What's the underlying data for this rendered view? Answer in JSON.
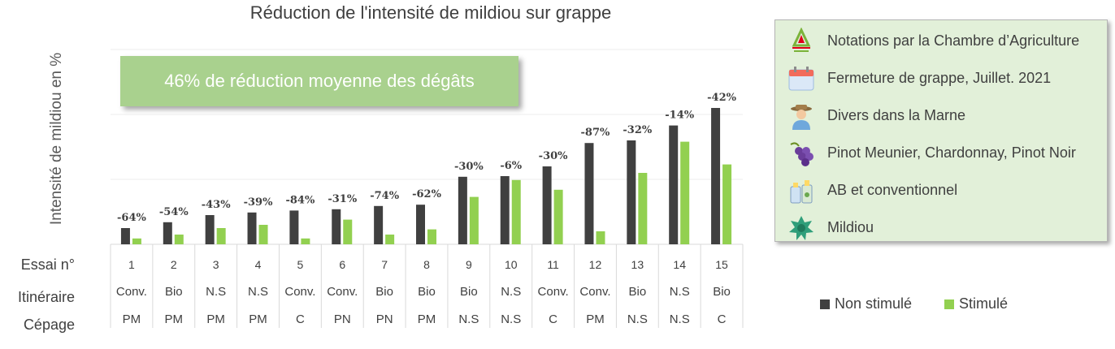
{
  "chart_data": {
    "type": "bar",
    "title": "Réduction de l'intensité de mildiou sur grappe",
    "ylabel": "Intensité de mildiou en %",
    "xlabel": "Essai n°",
    "categories": [
      "1",
      "2",
      "3",
      "4",
      "5",
      "6",
      "7",
      "8",
      "9",
      "10",
      "11",
      "12",
      "13",
      "14",
      "15"
    ],
    "series": [
      {
        "name": "Non stimulé",
        "color": "#404040",
        "values": [
          2.5,
          3.4,
          4.5,
          4.9,
          5.2,
          5.4,
          5.9,
          6.1,
          10.4,
          10.5,
          12.0,
          15.6,
          16.0,
          18.3,
          21.0
        ]
      },
      {
        "name": "Stimulé",
        "color": "#92d050",
        "values": [
          0.9,
          1.5,
          2.5,
          3.0,
          0.9,
          3.8,
          1.5,
          2.3,
          7.3,
          9.9,
          8.4,
          2.0,
          11.0,
          15.8,
          12.3
        ]
      }
    ],
    "reductions": [
      "-64%",
      "-54%",
      "-43%",
      "-39%",
      "-84%",
      "-31%",
      "-74%",
      "-62%",
      "-30%",
      "-6%",
      "-30%",
      "-87%",
      "-32%",
      "-14%",
      "-42%"
    ],
    "ylim": [
      0,
      30
    ],
    "grid": true,
    "legend_position": "right"
  },
  "callout": "46% de réduction moyenne des dégâts",
  "table": {
    "row_labels": [
      "Essai n°",
      "Itinéraire",
      "Cépage"
    ],
    "itineraire": [
      "Conv.",
      "Bio",
      "N.S",
      "N.S",
      "Conv.",
      "Conv.",
      "Bio",
      "Bio",
      "Bio",
      "N.S",
      "Conv.",
      "Conv.",
      "Bio",
      "N.S",
      "Bio"
    ],
    "cepage": [
      "PM",
      "PM",
      "PM",
      "PM",
      "C",
      "PN",
      "PN",
      "PM",
      "N.S",
      "N.S",
      "C",
      "PM",
      "N.S",
      "N.S",
      "C"
    ]
  },
  "info_panel": {
    "items": [
      {
        "icon": "chamber-agriculture-logo-icon",
        "text": "Notations par la Chambre d’Agriculture"
      },
      {
        "icon": "calendar-icon",
        "text": "Fermeture de grappe, Juillet. 2021"
      },
      {
        "icon": "farmer-icon",
        "text": "Divers dans la Marne"
      },
      {
        "icon": "grapes-icon",
        "text": "Pinot Meunier, Chardonnay, Pinot Noir"
      },
      {
        "icon": "spray-bottles-icon",
        "text": "AB et conventionnel"
      },
      {
        "icon": "mildew-icon",
        "text": "Mildiou"
      }
    ]
  }
}
